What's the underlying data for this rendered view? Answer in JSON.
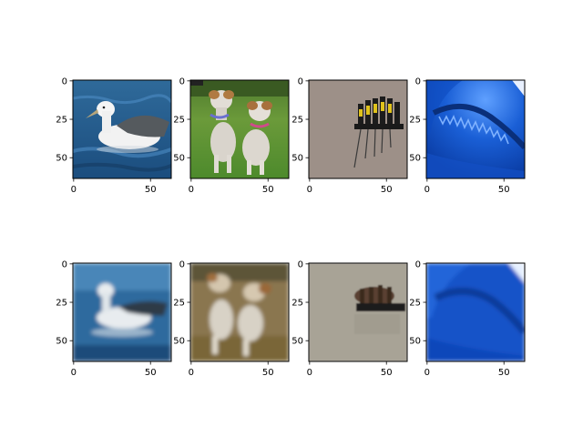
{
  "figure": {
    "rows": [
      {
        "role": "original",
        "panels": [
          {
            "subject": "albatross on water",
            "icon": "albatross-image"
          },
          {
            "subject": "two wire fox terriers on grass",
            "icon": "dogs-image"
          },
          {
            "subject": "screwdriver set on holder",
            "icon": "screwdrivers-image"
          },
          {
            "subject": "shark jaw closeup",
            "icon": "shark-image"
          }
        ]
      },
      {
        "role": "reconstruction",
        "panels": [
          {
            "subject": "blurred albatross on water",
            "icon": "albatross-recon-image"
          },
          {
            "subject": "blurred terriers",
            "icon": "dogs-recon-image"
          },
          {
            "subject": "blurred screwdriver set",
            "icon": "screwdrivers-recon-image"
          },
          {
            "subject": "blurred shark",
            "icon": "shark-recon-image"
          }
        ]
      }
    ],
    "axes": {
      "x_ticks": [
        "0",
        "50"
      ],
      "y_ticks": [
        "0",
        "25",
        "50"
      ],
      "x_tick_values": [
        0,
        50
      ],
      "y_tick_values": [
        0,
        25,
        50
      ],
      "image_extent": [
        -0.5,
        63.5
      ]
    }
  }
}
